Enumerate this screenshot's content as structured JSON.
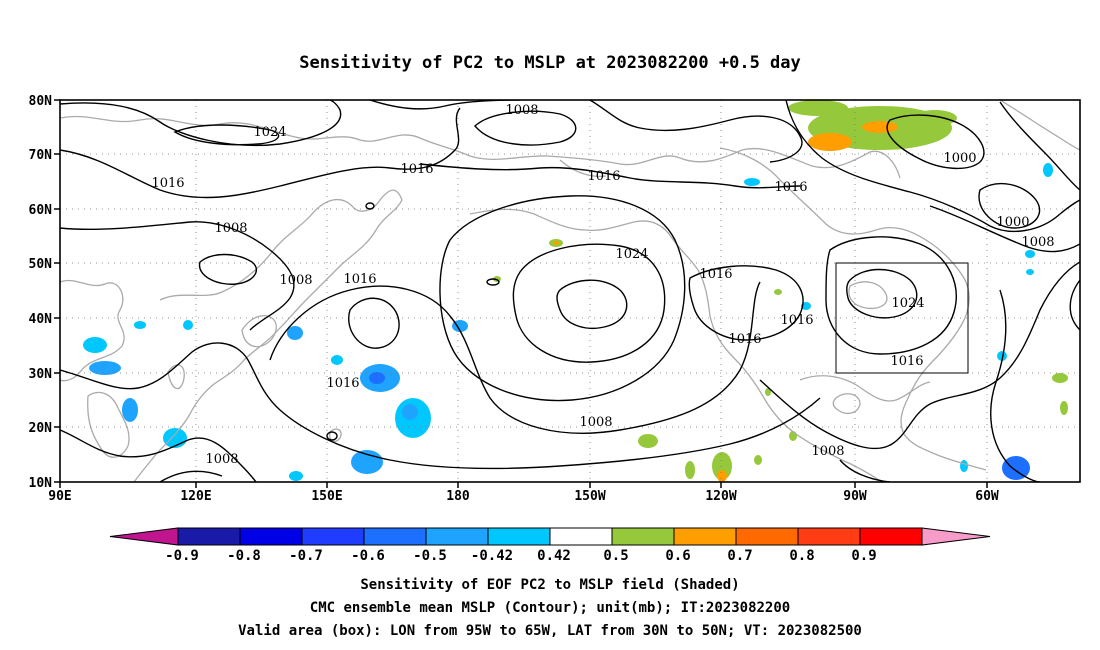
{
  "title": "Sensitivity of PC2 to MSLP at 2023082200 +0.5 day",
  "lat_ticks": [
    "80N",
    "70N",
    "60N",
    "50N",
    "40N",
    "30N",
    "20N",
    "10N"
  ],
  "lon_ticks": [
    "90E",
    "120E",
    "150E",
    "180",
    "150W",
    "120W",
    "90W",
    "60W"
  ],
  "colorbar": {
    "labels": [
      "-0.9",
      "-0.8",
      "-0.7",
      "-0.6",
      "-0.5",
      "-0.42",
      "0.42",
      "0.5",
      "0.6",
      "0.7",
      "0.8",
      "0.9"
    ],
    "colors": [
      "#c0158f",
      "#1a1aa8",
      "#0000e6",
      "#1f3cff",
      "#1d6fff",
      "#1ea3ff",
      "#00c8ff",
      "#ffffff",
      "#96c83c",
      "#ff9e00",
      "#ff6a00",
      "#ff3c14",
      "#ff0000",
      "#f79bc8"
    ]
  },
  "contour_labels": [
    "1024",
    "1008",
    "1016",
    "1016",
    "1008",
    "1016",
    "1016",
    "1000",
    "1000",
    "1008",
    "1008",
    "1024",
    "1016",
    "1016",
    "1024",
    "1016",
    "1016",
    "1016",
    "1016",
    "1008",
    "1008"
  ],
  "valid_box": {
    "lon_min": -95,
    "lon_max": -65,
    "lat_min": 30,
    "lat_max": 50
  },
  "caption": {
    "line1": "Sensitivity of EOF PC2 to MSLP field (Shaded)",
    "line2": "CMC ensemble mean MSLP (Contour); unit(mb); IT:2023082200",
    "line3": "Valid area (box): LON from 95W to 65W, LAT from 30N to 50N; VT: 2023082500"
  }
}
